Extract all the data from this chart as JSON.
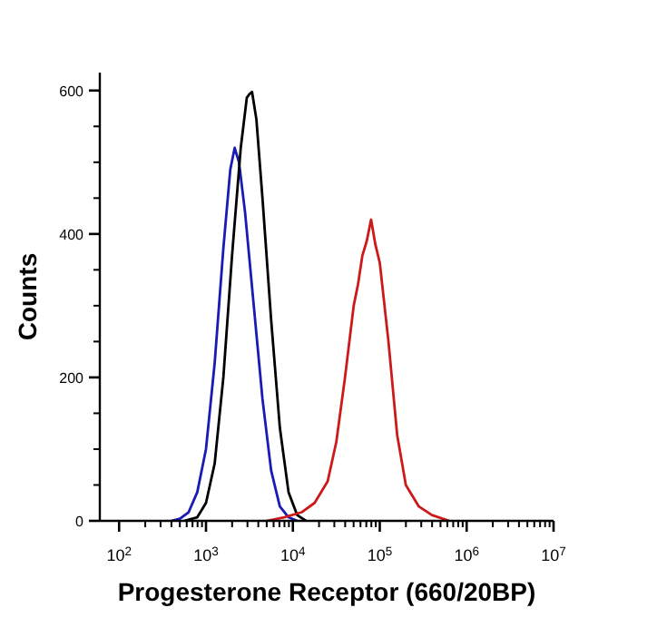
{
  "chart_data": {
    "type": "line",
    "xlabel": "Progesterone Receptor (660/20BP)",
    "ylabel": "Counts",
    "log": "x",
    "grid": false,
    "marker": "none",
    "line_style": "solid",
    "xlim": [
      60,
      10000000
    ],
    "ylim": [
      0,
      625
    ],
    "xticks": [
      {
        "value": 100,
        "label": "10$^{2}$"
      },
      {
        "value": 200,
        "label": null
      },
      {
        "value": 300,
        "label": null
      },
      {
        "value": 400,
        "label": null
      },
      {
        "value": 500,
        "label": null
      },
      {
        "value": 600,
        "label": null
      },
      {
        "value": 700,
        "label": null
      },
      {
        "value": 800,
        "label": null
      },
      {
        "value": 900,
        "label": null
      },
      {
        "value": 1000,
        "label": "10$^{3}$"
      },
      {
        "value": 2000,
        "label": null
      },
      {
        "value": 3000,
        "label": null
      },
      {
        "value": 4000,
        "label": null
      },
      {
        "value": 5000,
        "label": null
      },
      {
        "value": 6000,
        "label": null
      },
      {
        "value": 7000,
        "label": null
      },
      {
        "value": 8000,
        "label": null
      },
      {
        "value": 9000,
        "label": null
      },
      {
        "value": 10000,
        "label": "10$^{4}$"
      },
      {
        "value": 20000,
        "label": null
      },
      {
        "value": 30000,
        "label": null
      },
      {
        "value": 40000,
        "label": null
      },
      {
        "value": 50000,
        "label": null
      },
      {
        "value": 60000,
        "label": null
      },
      {
        "value": 70000,
        "label": null
      },
      {
        "value": 80000,
        "label": null
      },
      {
        "value": 90000,
        "label": null
      },
      {
        "value": 100000,
        "label": "10$^{5}$"
      },
      {
        "value": 200000,
        "label": null
      },
      {
        "value": 300000,
        "label": null
      },
      {
        "value": 400000,
        "label": null
      },
      {
        "value": 500000,
        "label": null
      },
      {
        "value": 600000,
        "label": null
      },
      {
        "value": 700000,
        "label": null
      },
      {
        "value": 800000,
        "label": null
      },
      {
        "value": 900000,
        "label": null
      },
      {
        "value": 1000000,
        "label": "10$^{6}$"
      },
      {
        "value": 2000000,
        "label": null
      },
      {
        "value": 3000000,
        "label": null
      },
      {
        "value": 4000000,
        "label": null
      },
      {
        "value": 5000000,
        "label": null
      },
      {
        "value": 6000000,
        "label": null
      },
      {
        "value": 7000000,
        "label": null
      },
      {
        "value": 8000000,
        "label": null
      },
      {
        "value": 9000000,
        "label": null
      },
      {
        "value": 10000000,
        "label": "10$^{7}$"
      }
    ],
    "yticks": [
      0,
      {
        "value": 50,
        "label": null
      },
      {
        "value": 100,
        "label": null
      },
      {
        "value": 150,
        "label": null
      },
      200,
      {
        "value": 250,
        "label": null
      },
      {
        "value": 300,
        "label": null
      },
      {
        "value": 350,
        "label": null
      },
      400,
      {
        "value": 450,
        "label": null
      },
      {
        "value": 500,
        "label": null
      },
      {
        "value": 550,
        "label": null
      },
      600
    ],
    "series": [
      {
        "color": "#1a1ab4",
        "x": [
          398,
          501,
          631,
          794,
          1000,
          1259,
          1585,
          1905,
          2138,
          2399,
          2818,
          3548,
          4467,
          5623,
          7079,
          8913,
          11220
        ],
        "values": [
          0,
          3,
          12,
          40,
          100,
          220,
          380,
          490,
          520,
          500,
          430,
          300,
          170,
          70,
          20,
          5,
          0
        ]
      },
      {
        "color": "#000000",
        "x": [
          562,
          794,
          1000,
          1259,
          1585,
          1995,
          2512,
          2951,
          3162,
          3388,
          3802,
          4467,
          5623,
          7079,
          8913,
          11220,
          14125
        ],
        "values": [
          0,
          5,
          25,
          80,
          200,
          370,
          520,
          590,
          595,
          598,
          560,
          450,
          280,
          130,
          40,
          8,
          0
        ]
      },
      {
        "color": "#cc1a1a",
        "x": [
          5012,
          7943,
          12589,
          17783,
          25119,
          31623,
          39811,
          50119,
          56234,
          63096,
          70795,
          79433,
          89125,
          100000,
          125893,
          158489,
          199526,
          281838,
          398107,
          630957
        ],
        "values": [
          0,
          5,
          12,
          25,
          55,
          110,
          200,
          300,
          330,
          370,
          390,
          420,
          385,
          360,
          250,
          120,
          50,
          20,
          8,
          0
        ]
      }
    ]
  }
}
